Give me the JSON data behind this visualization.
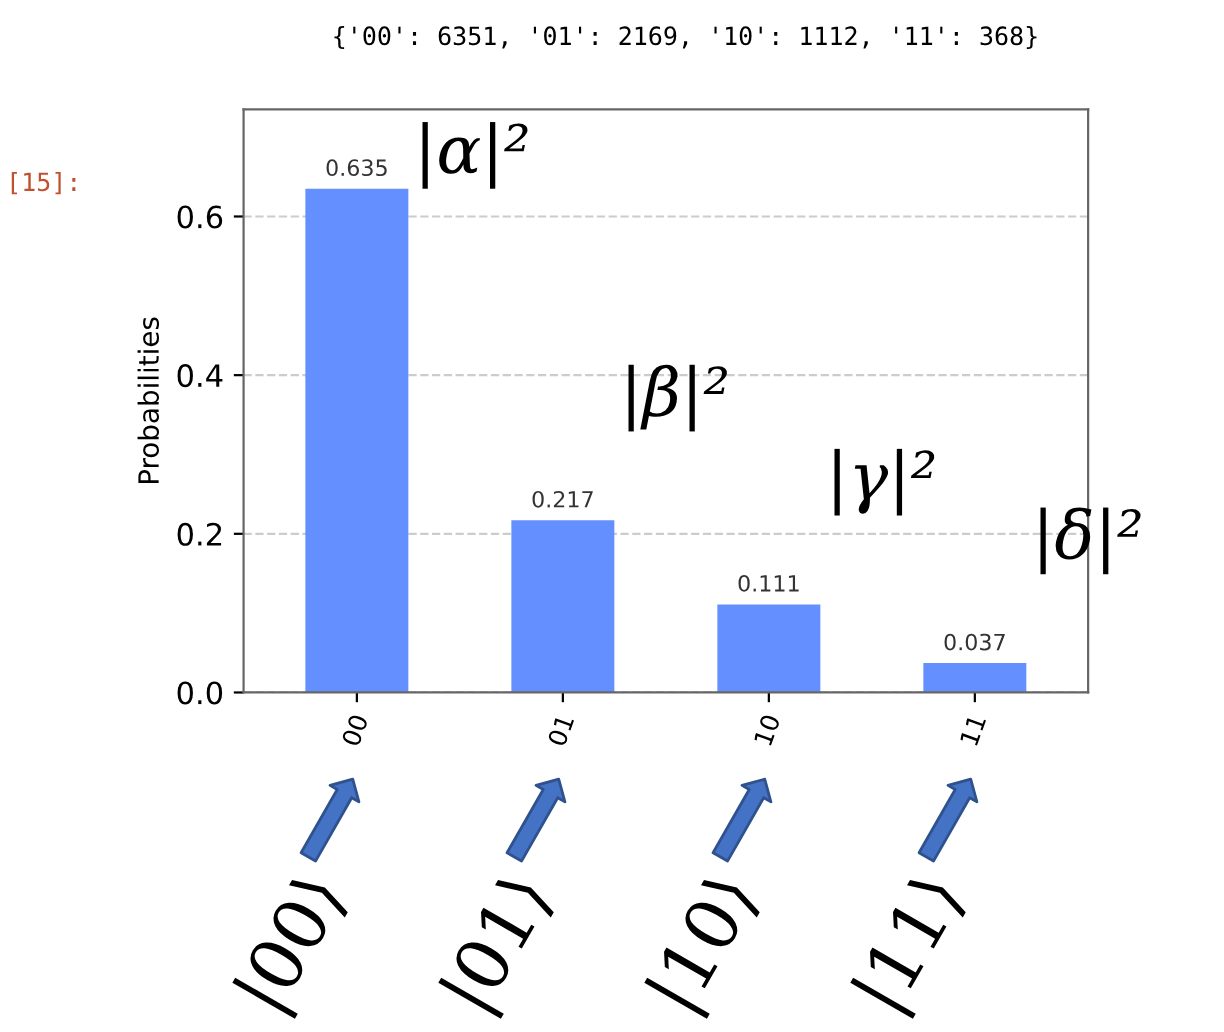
{
  "chart_data": {
    "type": "bar",
    "title": "{'00': 6351, '01': 2169, '10': 1112, '11': 368}",
    "ylabel": "Probabilities",
    "categories": [
      "00",
      "01",
      "10",
      "11"
    ],
    "values": [
      0.635,
      0.217,
      0.111,
      0.037
    ],
    "color": "#648fff",
    "ylim": [
      0,
      0.735
    ],
    "yticks": [
      {
        "value": 0,
        "label": "0.0"
      },
      0.2,
      0.4,
      0.6
    ],
    "grid": "y",
    "data_labels": true,
    "annotations": [
      "[15]:",
      {
        "text": "|α|²",
        "x": "00",
        "y": 0.635
      },
      {
        "text": "|β|²",
        "x": "01",
        "y": 0.217
      },
      {
        "text": "|γ|²",
        "x": "10",
        "y": 0.111
      },
      {
        "text": "|δ|²",
        "x": "11",
        "y": 0.037
      },
      "|00⟩",
      "|01⟩",
      "|10⟩",
      "|11⟩"
    ]
  }
}
